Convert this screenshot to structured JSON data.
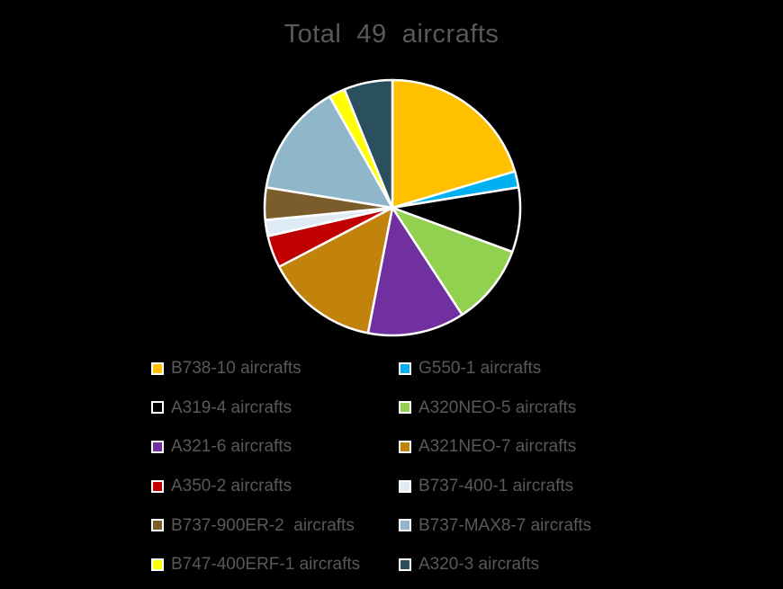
{
  "page": {
    "background_color": "#000000",
    "text_color": "#595959"
  },
  "chart_data": {
    "type": "pie",
    "title": "Total  49  aircrafts",
    "total": 49,
    "legend_position": "bottom",
    "legend_columns": 2,
    "start_angle_deg": 0,
    "direction": "clockwise",
    "slice_border_color": "#FFFFFF",
    "series": [
      {
        "id": "b738",
        "name": "B738",
        "label": "B738-10 aircrafts",
        "value": 10,
        "color": "#FFC000"
      },
      {
        "id": "g550",
        "name": "G550",
        "label": "G550-1 aircrafts",
        "value": 1,
        "color": "#00B0F0"
      },
      {
        "id": "a319",
        "name": "A319",
        "label": "A319-4 aircrafts",
        "value": 4,
        "color": "#000000"
      },
      {
        "id": "a320neo",
        "name": "A320NEO",
        "label": "A320NEO-5 aircrafts",
        "value": 5,
        "color": "#92D050"
      },
      {
        "id": "a321",
        "name": "A321",
        "label": "A321-6 aircrafts",
        "value": 6,
        "color": "#7030A0"
      },
      {
        "id": "a321neo",
        "name": "A321NEO",
        "label": "A321NEO-7 aircrafts",
        "value": 7,
        "color": "#C2830D"
      },
      {
        "id": "a350",
        "name": "A350",
        "label": "A350-2 aircrafts",
        "value": 2,
        "color": "#C00000"
      },
      {
        "id": "b737-400",
        "name": "B737-400",
        "label": "B737-400-1 aircrafts",
        "value": 1,
        "color": "#DEEBF5"
      },
      {
        "id": "b737-900er",
        "name": "B737-900ER",
        "label": "B737-900ER-2  aircrafts",
        "value": 2,
        "color": "#7B5C2B"
      },
      {
        "id": "b737-max8",
        "name": "B737-MAX8",
        "label": "B737-MAX8-7 aircrafts",
        "value": 7,
        "color": "#8FB6C9"
      },
      {
        "id": "b747-400erf",
        "name": "B747-400ERF",
        "label": "B747-400ERF-1 aircrafts",
        "value": 1,
        "color": "#FFFF00"
      },
      {
        "id": "a320",
        "name": "A320",
        "label": "A320-3 aircrafts",
        "value": 3,
        "color": "#2A4F5E"
      }
    ]
  }
}
